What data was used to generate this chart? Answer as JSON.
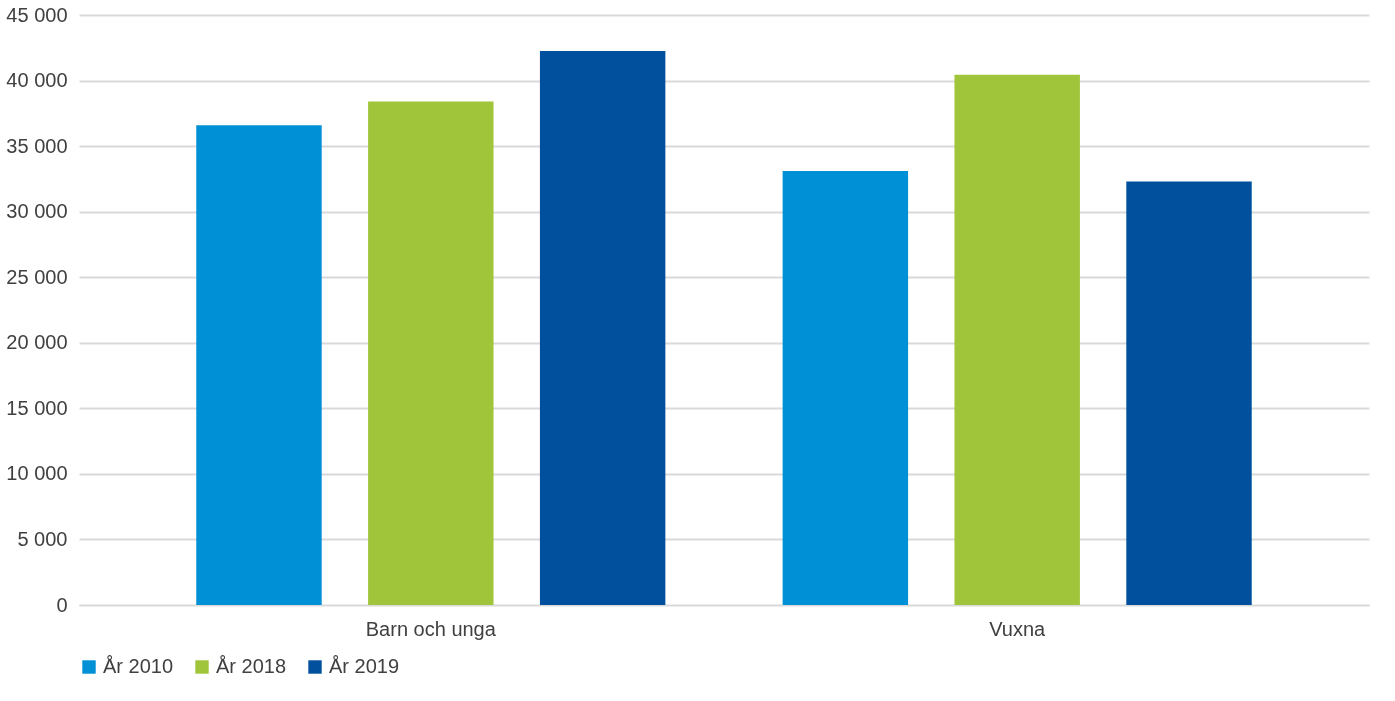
{
  "chart_data": {
    "type": "bar",
    "categories": [
      "Barn och unga",
      "Vuxna"
    ],
    "series": [
      {
        "name": "År 2010",
        "color": "#0090d5",
        "values": [
          36600,
          33100
        ]
      },
      {
        "name": "År 2018",
        "color": "#a1c53a",
        "values": [
          38400,
          40450
        ]
      },
      {
        "name": "År 2019",
        "color": "#00509e",
        "values": [
          42250,
          32300
        ]
      }
    ],
    "ylim": [
      0,
      45000
    ],
    "yticks": [
      0,
      {
        "value": 5000,
        "label": "5 000"
      },
      {
        "value": 10000,
        "label": "10 000"
      },
      {
        "value": 15000,
        "label": "15 000"
      },
      {
        "value": 20000,
        "label": "20 000"
      },
      {
        "value": 25000,
        "label": "25 000"
      },
      {
        "value": 30000,
        "label": "30 000"
      },
      {
        "value": 35000,
        "label": "35 000"
      },
      {
        "value": 40000,
        "label": "40 000"
      },
      {
        "value": 45000,
        "label": "45 000"
      }
    ],
    "grid": "y",
    "legend": "bottom"
  }
}
